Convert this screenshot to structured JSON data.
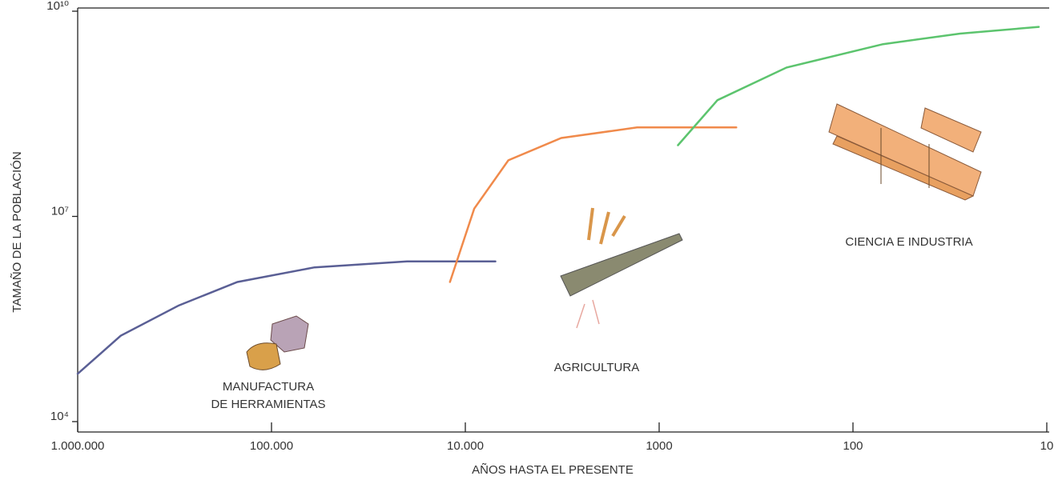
{
  "chart_data": {
    "type": "line",
    "xlabel": "AÑOS HASTA EL PRESENTE",
    "ylabel": "TAMAÑO DE LA POBLACIÓN",
    "xscale": "log",
    "yscale": "log",
    "xlim": [
      1000000,
      10
    ],
    "ylim": [
      10000,
      10000000000
    ],
    "xticks": [
      {
        "value": 1000000,
        "label": "1.000.000"
      },
      {
        "value": 100000,
        "label": "100.000"
      },
      {
        "value": 10000,
        "label": "10.000"
      },
      1000,
      100,
      10
    ],
    "yticks": [
      {
        "value": 10000,
        "label": "10⁴"
      },
      {
        "value": 10000000,
        "label": "10⁷"
      },
      {
        "value": 10000000000,
        "label": "10¹⁰"
      }
    ],
    "series": [
      {
        "color": "#5a5f95",
        "x": [
          1000000,
          600000,
          300000,
          150000,
          60000,
          20000,
          7000
        ],
        "values": [
          50000,
          180000,
          500000,
          1100000,
          1800000,
          2200000,
          2200000
        ]
      },
      {
        "color": "#f08a4b",
        "x": [
          12000,
          9000,
          6000,
          3200,
          1300,
          400
        ],
        "values": [
          1100000,
          13000000,
          66000000,
          140000000,
          200000000,
          200000000
        ]
      },
      {
        "color": "#5cc46e",
        "x": [
          800,
          500,
          220,
          70,
          28,
          11
        ],
        "values": [
          110000000,
          500000000,
          1500000000,
          3300000000,
          4700000000,
          5900000000
        ]
      }
    ],
    "annotations": [
      {
        "lines": [
          "MANUFACTURA",
          "DE HERRAMIENTAS"
        ]
      },
      {
        "lines": [
          "AGRICULTURA"
        ]
      },
      {
        "lines": [
          "CIENCIA E INDUSTRIA"
        ]
      }
    ]
  }
}
